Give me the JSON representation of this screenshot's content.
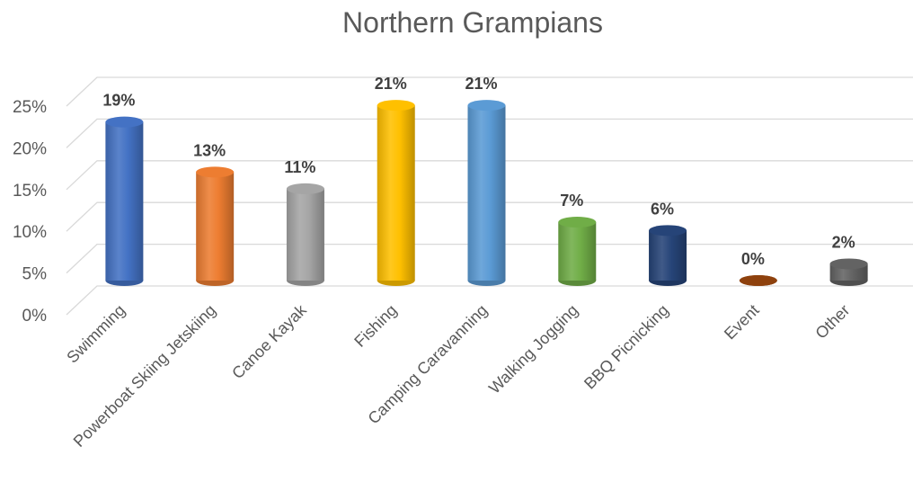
{
  "chart_data": {
    "type": "bar",
    "title": "Northern Grampians",
    "categories": [
      "Swimming",
      "Powerboat Skiing Jetskiing",
      "Canoe Kayak",
      "Fishing",
      "Camping Caravanning",
      "Walking Jogging",
      "BBQ Picnicking",
      "Event",
      "Other"
    ],
    "values": [
      19,
      13,
      11,
      21,
      21,
      7,
      6,
      0,
      2
    ],
    "data_labels": [
      "19%",
      "13%",
      "11%",
      "21%",
      "21%",
      "7%",
      "6%",
      "0%",
      "2%"
    ],
    "y_ticks": [
      "0%",
      "5%",
      "10%",
      "15%",
      "20%",
      "25%"
    ],
    "ylim": [
      0,
      25
    ],
    "grid": true,
    "legend": "none",
    "style": "3d-cylinder",
    "colors": [
      "#4472c4",
      "#ed7d31",
      "#a5a5a5",
      "#ffc000",
      "#5b9bd5",
      "#70ad47",
      "#264478",
      "#9e480e",
      "#636363"
    ]
  }
}
